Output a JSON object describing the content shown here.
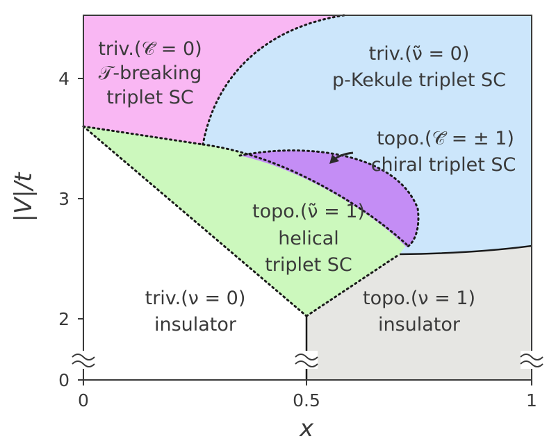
{
  "colors": {
    "pink": "#f9b7f3",
    "blue": "#cce6fb",
    "green": "#ccf8bd",
    "purple": "#c48df5",
    "gray": "#e6e6e3",
    "white": "#ffffff",
    "frame": "#3a3a3a"
  },
  "axes": {
    "x_label": "x",
    "y_label": "|V|/t",
    "x_ticks": [
      "0",
      "0.5",
      "1"
    ],
    "y_ticks": [
      "0",
      "2",
      "3",
      "4"
    ],
    "break_mark": "≈"
  },
  "regions": {
    "pink": {
      "line1": "triv.(𝒞̃ = 0)",
      "line2": "𝒯-breaking",
      "line3": "triplet SC"
    },
    "blue": {
      "line1": "triv.(ν̃ = 0)",
      "line2": "p-Kekule triplet SC"
    },
    "purple": {
      "line1": "topo.(𝒞̃ = ± 1)",
      "line2": "chiral triplet SC"
    },
    "green": {
      "line1": "topo.(ν̃ = 1)",
      "line2": "helical",
      "line3": "triplet SC"
    },
    "white": {
      "line1": "triv.(ν = 0)",
      "line2": "insulator"
    },
    "gray": {
      "line1": "topo.(ν = 1)",
      "line2": "insulator"
    }
  }
}
